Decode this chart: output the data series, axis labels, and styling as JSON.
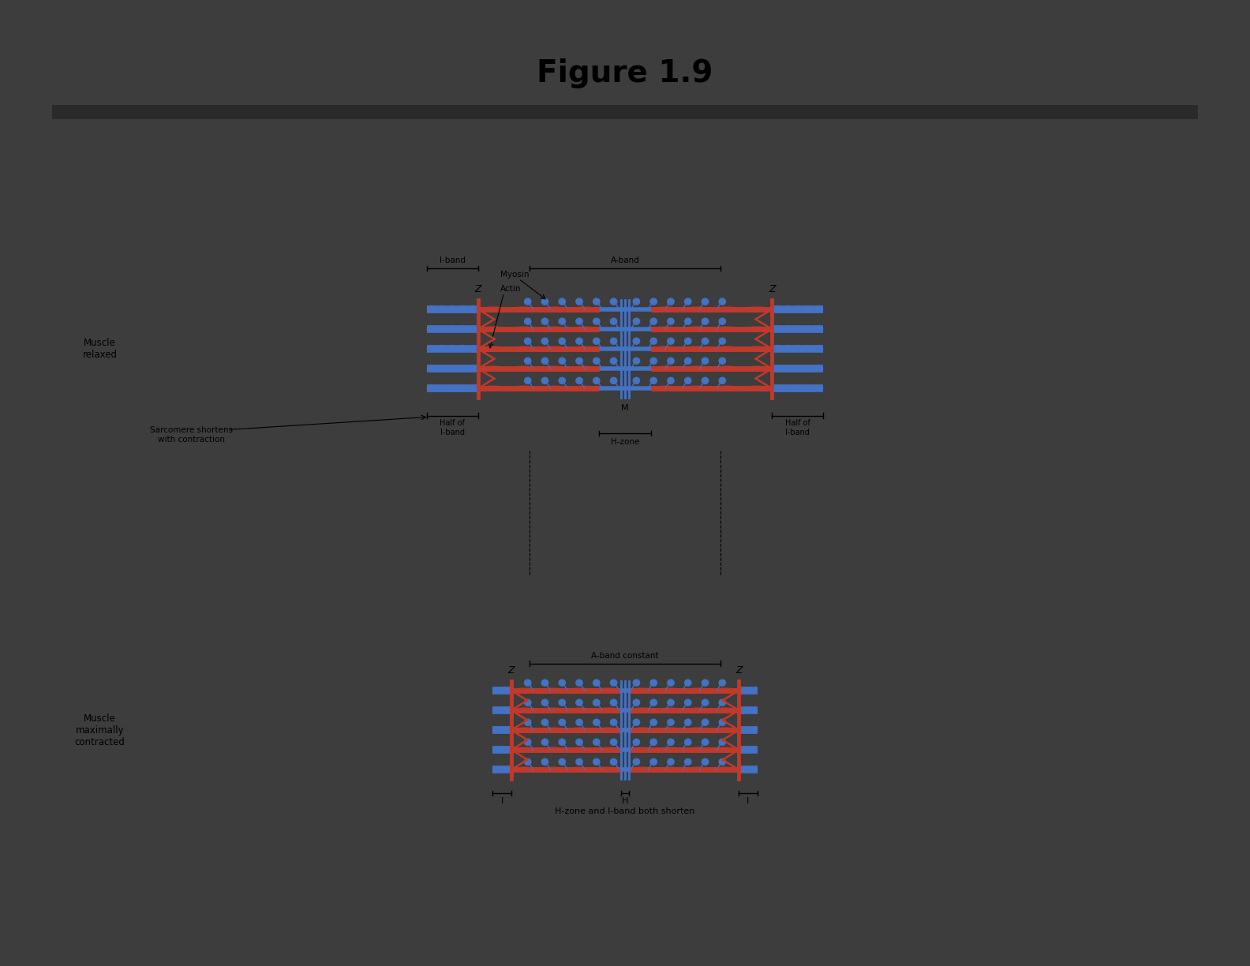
{
  "title": "Figure 1.9",
  "relaxed_label": "Muscle\nrelaxed",
  "contracted_label": "Muscle\nmaximally\ncontracted",
  "iband_label": "I-band",
  "aband_label": "A-band",
  "hzone_label": "H-zone",
  "half_iband_label": "Half of\nI-band",
  "m_label": "M",
  "h_label": "H",
  "i_label": "I",
  "aband_constant_label": "A-band constant",
  "sarcomere_label": "Sarcomere shortens\nwith contraction",
  "bottom_label": "H-zone and I-band both shorten",
  "myosin_label": "Myosin",
  "actin_label_text": "Actin",
  "z_label": "Z",
  "actin_color": "#4472c4",
  "myosin_red_color": "#c0392b",
  "outer_bg": "#3d3d3d",
  "inner_bg": "#ffffff"
}
